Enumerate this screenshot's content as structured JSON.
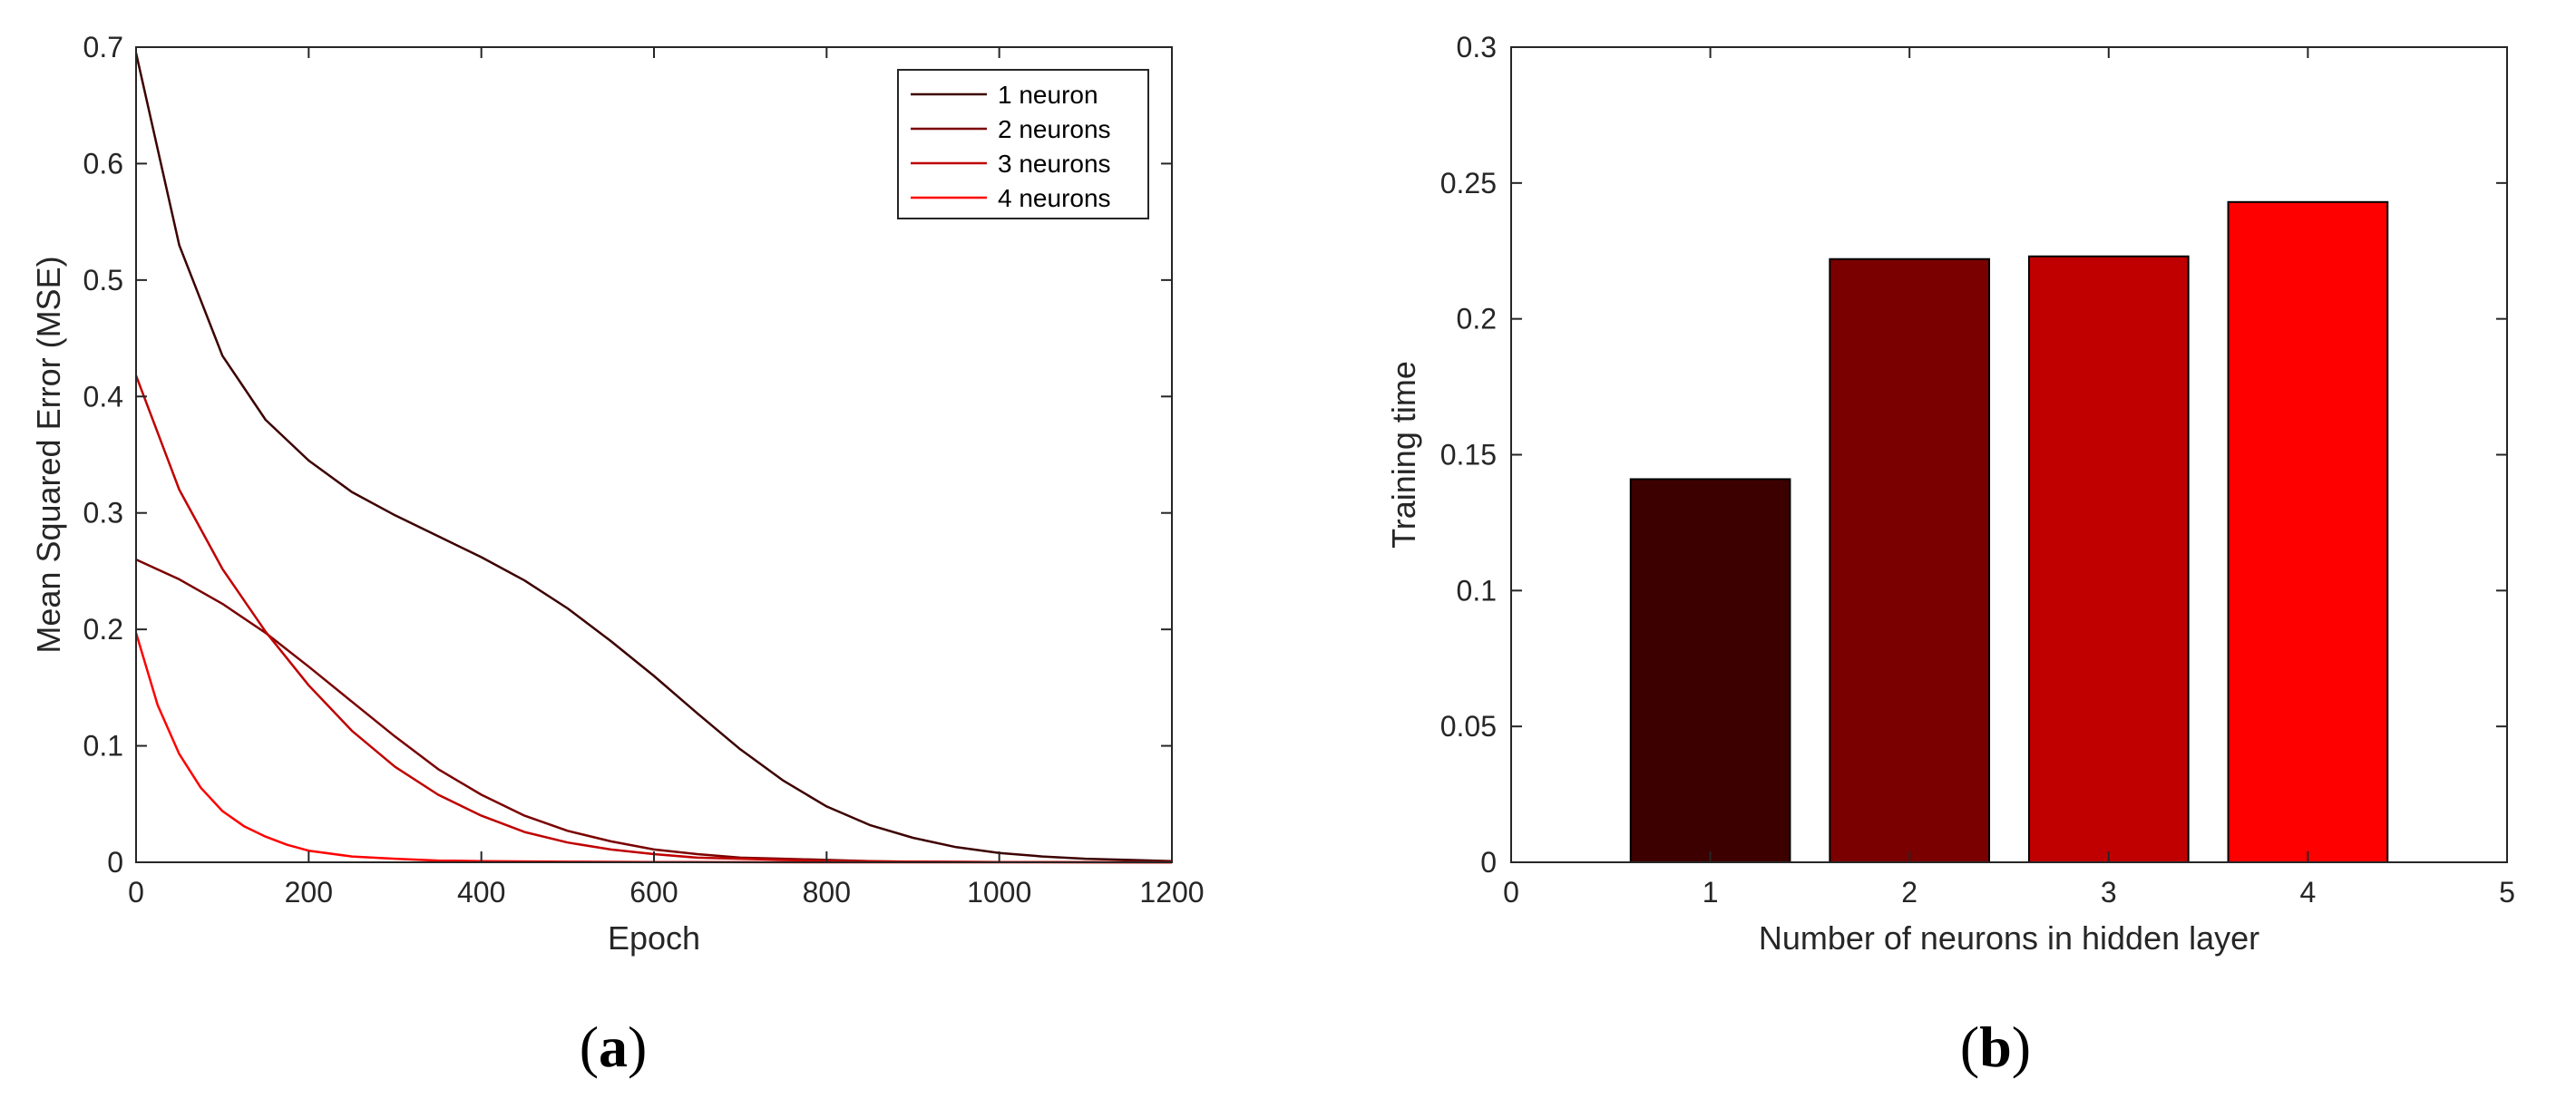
{
  "colors": {
    "series": [
      "#3d0000",
      "#7a0000",
      "#c00000",
      "#ff0000"
    ],
    "axis": "#262626"
  },
  "panels": {
    "a": "a",
    "b": "b"
  },
  "chart_data": [
    {
      "type": "line",
      "xlabel": "Epoch",
      "ylabel": "Mean Squared Error (MSE)",
      "xlim": [
        0,
        1200
      ],
      "ylim": [
        0,
        0.7
      ],
      "xticks": [
        0,
        200,
        400,
        600,
        800,
        1000,
        1200
      ],
      "yticks": [
        0,
        0.1,
        0.2,
        0.3,
        0.4,
        0.5,
        0.6,
        0.7
      ],
      "grid": false,
      "legend_position": "top-right",
      "series": [
        {
          "name": "1 neuron",
          "color": "#3d0000",
          "x": [
            0,
            50,
            100,
            150,
            200,
            250,
            300,
            350,
            400,
            450,
            500,
            550,
            600,
            650,
            700,
            750,
            800,
            850,
            900,
            950,
            1000,
            1050,
            1100,
            1150,
            1200
          ],
          "y": [
            0.695,
            0.53,
            0.435,
            0.38,
            0.345,
            0.318,
            0.298,
            0.28,
            0.262,
            0.242,
            0.218,
            0.19,
            0.16,
            0.128,
            0.097,
            0.07,
            0.048,
            0.032,
            0.021,
            0.013,
            0.008,
            0.005,
            0.003,
            0.002,
            0.001
          ]
        },
        {
          "name": "2 neurons",
          "color": "#7a0000",
          "x": [
            0,
            50,
            100,
            150,
            200,
            250,
            300,
            350,
            400,
            450,
            500,
            550,
            600,
            650,
            700,
            750,
            800,
            850,
            900,
            1000,
            1200
          ],
          "y": [
            0.26,
            0.243,
            0.222,
            0.197,
            0.168,
            0.138,
            0.108,
            0.08,
            0.058,
            0.04,
            0.027,
            0.018,
            0.011,
            0.007,
            0.004,
            0.003,
            0.002,
            0.001,
            0.0005,
            0.0002,
            0.0
          ],
          "y_note": ""
        },
        {
          "name": "3 neurons",
          "color": "#c00000",
          "x": [
            0,
            50,
            100,
            150,
            200,
            250,
            300,
            350,
            400,
            450,
            500,
            550,
            600,
            650,
            700,
            750,
            800,
            900,
            1000,
            1200
          ],
          "y": [
            0.418,
            0.32,
            0.252,
            0.198,
            0.152,
            0.113,
            0.082,
            0.058,
            0.04,
            0.026,
            0.017,
            0.011,
            0.007,
            0.004,
            0.003,
            0.002,
            0.001,
            0.0005,
            0.0002,
            0.0
          ]
        },
        {
          "name": "4 neurons",
          "color": "#ff0000",
          "x": [
            0,
            25,
            50,
            75,
            100,
            125,
            150,
            175,
            200,
            250,
            300,
            350,
            400,
            500,
            600,
            800,
            1000,
            1200
          ],
          "y": [
            0.197,
            0.135,
            0.093,
            0.064,
            0.044,
            0.031,
            0.022,
            0.015,
            0.01,
            0.005,
            0.003,
            0.0015,
            0.001,
            0.0005,
            0.0002,
            0.0,
            0.0,
            0.0
          ]
        }
      ]
    },
    {
      "type": "bar",
      "xlabel": "Number of neurons in hidden layer",
      "ylabel": "Training time",
      "xlim": [
        0,
        5
      ],
      "ylim": [
        0,
        0.3
      ],
      "xticks": [
        0,
        1,
        2,
        3,
        4,
        5
      ],
      "yticks": [
        0,
        0.05,
        0.1,
        0.15,
        0.2,
        0.25,
        0.3
      ],
      "yticklabels": [
        "0",
        "0.05",
        "0.1",
        "0.15",
        "0.2",
        "0.25",
        "0.3"
      ],
      "grid": false,
      "categories": [
        1,
        2,
        3,
        4
      ],
      "values": [
        0.141,
        0.222,
        0.223,
        0.243
      ],
      "bar_colors": [
        "#3d0000",
        "#7a0000",
        "#c00000",
        "#ff0000"
      ]
    }
  ]
}
